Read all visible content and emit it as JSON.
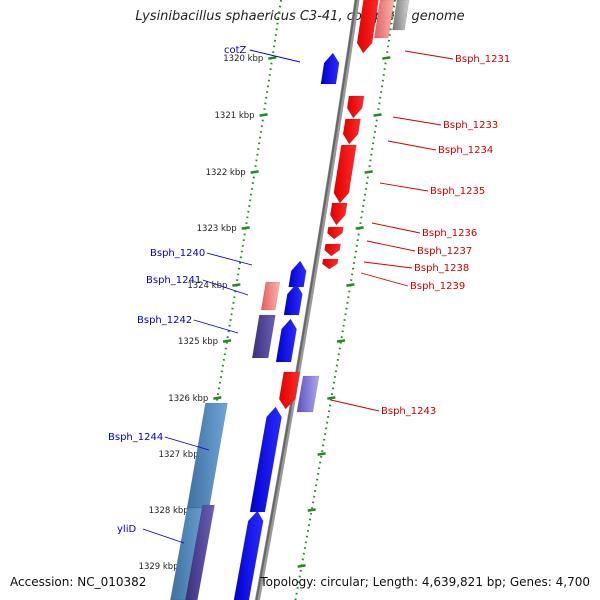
{
  "title": "Lysinibacillus sphaericus C3-41, complete genome",
  "footer": {
    "accession": "Accession: NC_010382",
    "topology": "Topology: circular; Length: 4,639,821 bp; Genes: 4,700"
  },
  "colors": {
    "forward_cds": "#0000ee",
    "reverse_cds": "#ff0000",
    "backbone": "#888888",
    "tick": "#228b22",
    "forward_label": "#0000cc",
    "reverse_label": "#cc0000",
    "kbp_label": "#222222"
  },
  "kbp_ticks": [
    "1320 kbp",
    "1321 kbp",
    "1322 kbp",
    "1323 kbp",
    "1324 kbp",
    "1325 kbp",
    "1326 kbp",
    "1327 kbp",
    "1328 kbp",
    "1329 kbp"
  ],
  "forward_genes": [
    {
      "label": "cotZ"
    },
    {
      "label": "Bsph_1240"
    },
    {
      "label": "Bsph_1241"
    },
    {
      "label": "Bsph_1242"
    },
    {
      "label": "Bsph_1244"
    },
    {
      "label": "yliD"
    }
  ],
  "reverse_genes": [
    {
      "label": "Bsph_1231"
    },
    {
      "label": "Bsph_1233"
    },
    {
      "label": "Bsph_1234"
    },
    {
      "label": "Bsph_1235"
    },
    {
      "label": "Bsph_1236"
    },
    {
      "label": "Bsph_1237"
    },
    {
      "label": "Bsph_1238"
    },
    {
      "label": "Bsph_1239"
    },
    {
      "label": "Bsph_1243"
    }
  ]
}
